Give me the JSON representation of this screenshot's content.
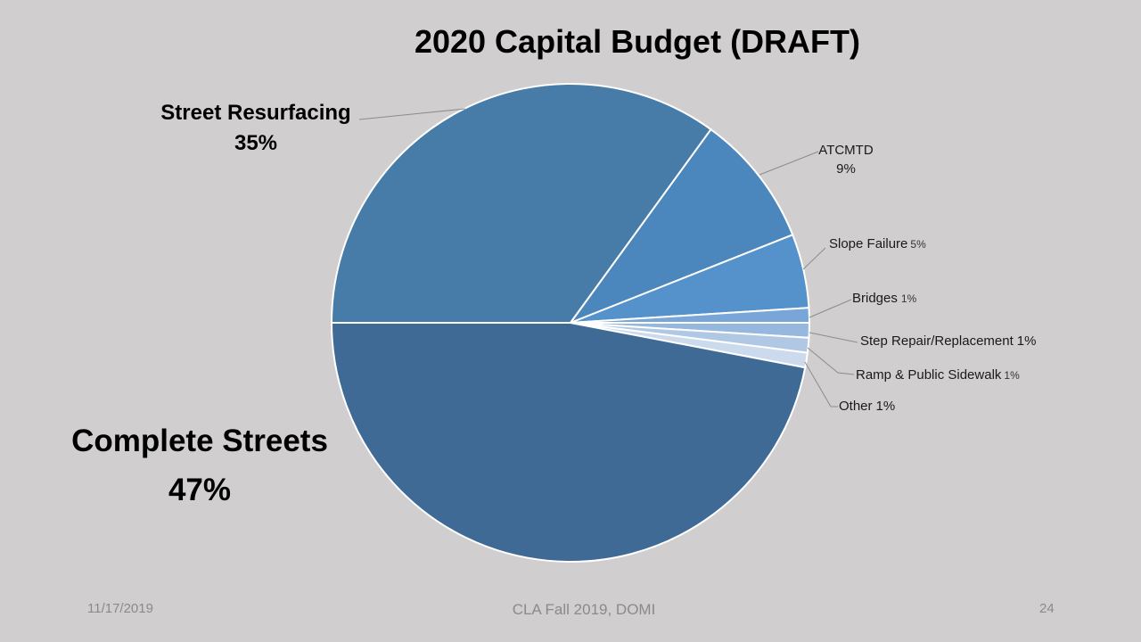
{
  "slide": {
    "title": "2020 Capital Budget (DRAFT)",
    "footer_date": "11/17/2019",
    "footer_center": "CLA Fall 2019, DOMI",
    "page_number": "24"
  },
  "chart_data": {
    "type": "pie",
    "title": "2020 Capital Budget (DRAFT)",
    "slices": [
      {
        "name": "Complete Streets",
        "value": 47,
        "label": "47%",
        "color": "#3e6a95"
      },
      {
        "name": "Street Resurfacing",
        "value": 35,
        "label": "35%",
        "color": "#477ca9"
      },
      {
        "name": "ATCMTD",
        "value": 9,
        "label": "9%",
        "color": "#4b86bc"
      },
      {
        "name": "Slope Failure",
        "value": 5,
        "label": "5%",
        "color": "#5592cb"
      },
      {
        "name": "Bridges",
        "value": 1,
        "label": "1%",
        "color": "#78a6d8"
      },
      {
        "name": "Step Repair/Replacement",
        "value": 1,
        "label": "1%",
        "color": "#96b7de"
      },
      {
        "name": "Ramp & Public Sidewalk",
        "value": 1,
        "label": "1%",
        "color": "#b1c8e5"
      },
      {
        "name": "Other",
        "value": 1,
        "label": "1%",
        "color": "#ccdaee"
      }
    ]
  }
}
